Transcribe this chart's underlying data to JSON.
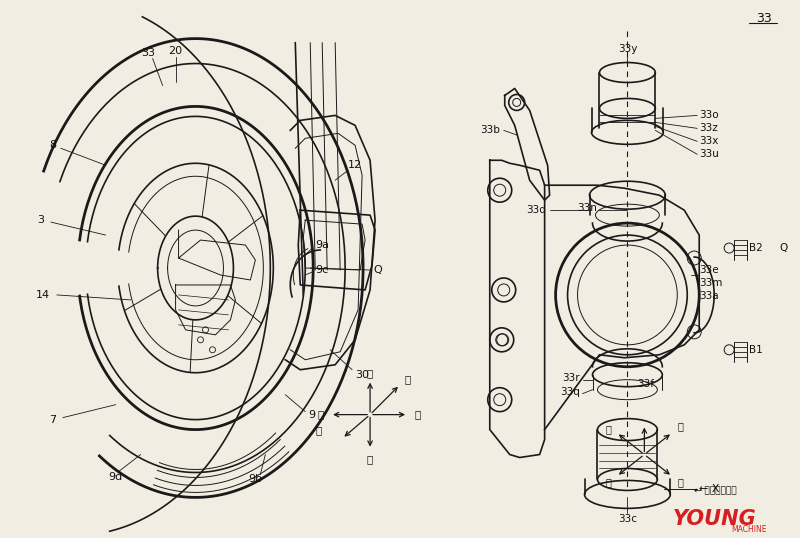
{
  "bg_color": "#f2ede3",
  "line_color": "#1a1a1a",
  "page_number": "33",
  "brand_text": "YOUNG",
  "brand_subtext": "MACHINE",
  "brand_color": "#d42020",
  "figsize": [
    8.0,
    5.38
  ],
  "dpi": 100
}
